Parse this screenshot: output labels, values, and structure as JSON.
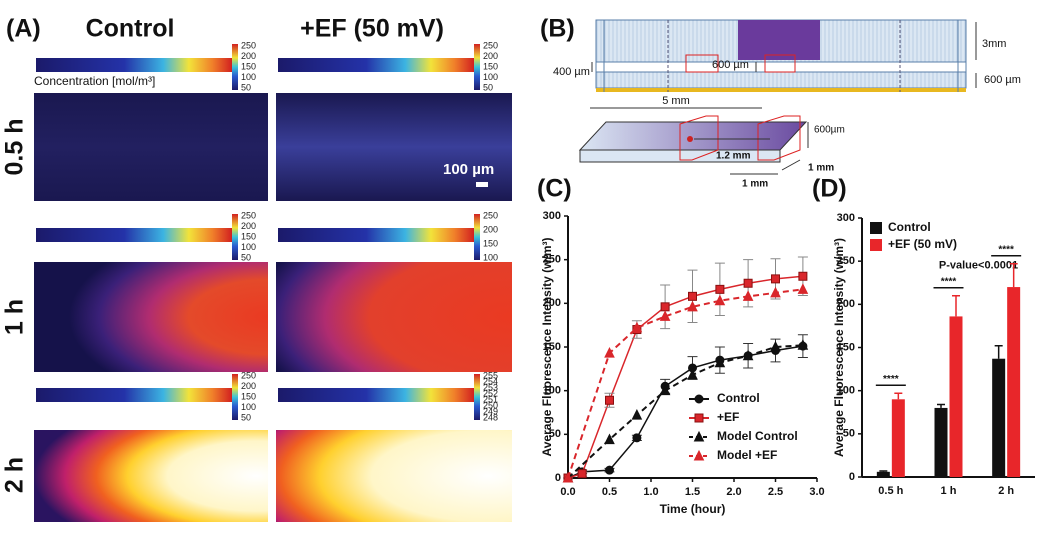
{
  "panel_labels": [
    "(A)",
    "(B)",
    "(C)",
    "(D)"
  ],
  "panel_a": {
    "columns": [
      "Control",
      "+EF (50 mV)"
    ],
    "rows": [
      "0.5 h",
      "1 h",
      "2 h"
    ],
    "colorbar_title": "Concentration [mol/m³]",
    "scale_bar": "100 µm",
    "colorbars": [
      [
        [
          250,
          200,
          150,
          100,
          50
        ],
        [
          250,
          200,
          150,
          100,
          50
        ]
      ],
      [
        [
          250,
          200,
          150,
          100,
          50
        ],
        [
          250,
          200,
          150,
          100
        ]
      ],
      [
        [
          250,
          200,
          150,
          100,
          50
        ],
        [
          255,
          254,
          253,
          252,
          251,
          250,
          249,
          248
        ]
      ]
    ]
  },
  "panel_b": {
    "labels": [
      "3mm",
      "400 µm",
      "600 µm",
      "600 µm",
      "5 mm",
      "600µm",
      "1.2 mm",
      "1 mm",
      "1 mm"
    ]
  },
  "chart_data": [
    {
      "type": "line",
      "x_label": "Time (hour)",
      "y_label": "Average Fluorescence Intensity (w/m³)",
      "xlim": [
        0,
        3
      ],
      "ylim": [
        0,
        300
      ],
      "xticks": [
        {
          "value": 0,
          "label": "0.0"
        },
        {
          "value": 0.5,
          "label": "0.5"
        },
        {
          "value": 1,
          "label": "1.0"
        },
        {
          "value": 1.5,
          "label": "1.5"
        },
        {
          "value": 2,
          "label": "2.0"
        },
        {
          "value": 2.5,
          "label": "2.5"
        },
        {
          "value": 3,
          "label": "3.0"
        }
      ],
      "yticks": [
        0,
        50,
        100,
        150,
        200,
        250,
        300
      ],
      "legend": "lower right",
      "series": [
        {
          "name": "Control",
          "color": "#111111",
          "marker": "circle",
          "dashed": false,
          "x": [
            0,
            0.17,
            0.5,
            0.83,
            1.17,
            1.5,
            1.83,
            2.17,
            2.5,
            2.83
          ],
          "values": [
            0,
            7,
            9,
            46,
            105,
            126,
            135,
            140,
            146,
            151
          ],
          "errors": [
            0,
            2,
            2,
            3,
            8,
            13,
            15,
            14,
            13,
            13
          ]
        },
        {
          "name": "+EF",
          "color": "#d9262b",
          "marker": "square",
          "dashed": false,
          "x": [
            0,
            0.17,
            0.5,
            0.83,
            1.17,
            1.5,
            1.83,
            2.17,
            2.5,
            2.83
          ],
          "values": [
            0,
            5,
            89,
            170,
            196,
            208,
            216,
            223,
            228,
            231
          ],
          "errors": [
            0,
            3,
            8,
            10,
            25,
            30,
            30,
            27,
            23,
            22
          ]
        },
        {
          "name": "Model Control",
          "color": "#111111",
          "marker": "triangle",
          "dashed": true,
          "x": [
            0,
            0.5,
            0.83,
            1.17,
            1.5,
            1.83,
            2.17,
            2.5,
            2.83
          ],
          "values": [
            0,
            44,
            72,
            100,
            118,
            132,
            140,
            150,
            152
          ]
        },
        {
          "name": "Model +EF",
          "color": "#d9262b",
          "marker": "triangle",
          "dashed": true,
          "x": [
            0,
            0.5,
            0.83,
            1.17,
            1.5,
            1.83,
            2.17,
            2.5,
            2.83
          ],
          "values": [
            0,
            143,
            172,
            185,
            196,
            203,
            208,
            212,
            216
          ]
        }
      ]
    },
    {
      "type": "bar",
      "y_label": "Average Fluorescence Intensity (w/m³)",
      "categories": [
        "0.5 h",
        "1 h",
        "2 h"
      ],
      "ylim": [
        0,
        300
      ],
      "yticks": [
        0,
        50,
        100,
        150,
        200,
        250,
        300
      ],
      "legend": "upper left",
      "series": [
        {
          "name": "Control",
          "color": "#111111",
          "values": [
            6,
            80,
            137
          ],
          "errors": [
            1,
            4,
            15
          ]
        },
        {
          "name": "+EF (50 mV)",
          "color": "#e8262a",
          "values": [
            90,
            186,
            220
          ],
          "errors": [
            7,
            24,
            27
          ]
        }
      ],
      "significance": [
        "****",
        "****",
        "****"
      ],
      "annotation": "P-value<0.0001"
    }
  ]
}
